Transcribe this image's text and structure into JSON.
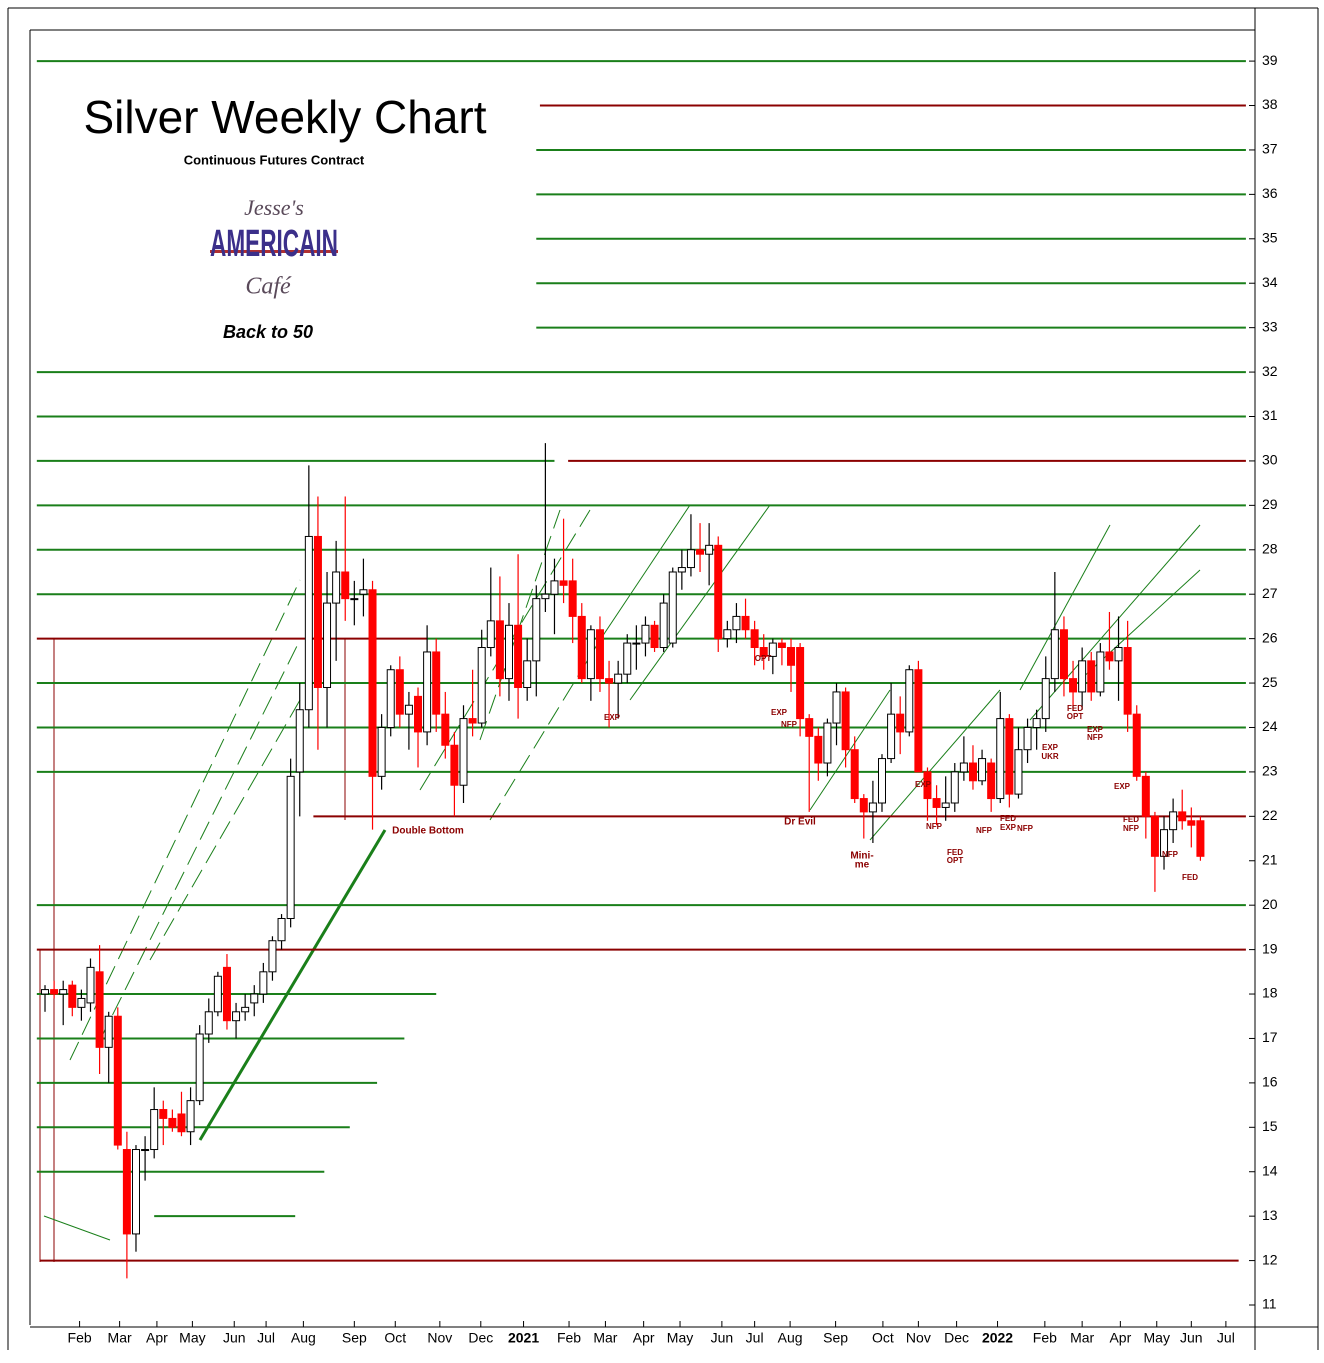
{
  "chart_data": {
    "type": "candlestick",
    "title": "Silver Weekly Chart",
    "subtitle": "Continuous Futures Contract",
    "logo": {
      "top": "Jesse's",
      "middle": "AMERICAIN",
      "bottom": "Café"
    },
    "tagline": "Back to 50",
    "up_color": "#ffffff",
    "down_color": "#ff0000",
    "ylim": [
      10.55,
      39.7
    ],
    "yticks": [
      11,
      12,
      13,
      14,
      15,
      16,
      17,
      18,
      19,
      20,
      21,
      22,
      23,
      24,
      25,
      26,
      27,
      28,
      29,
      30,
      31,
      32,
      33,
      34,
      35,
      36,
      37,
      38,
      39
    ],
    "xlim": [
      -1.65,
      133
    ],
    "xticks": [
      {
        "value": 3.8,
        "label": "Feb"
      },
      {
        "value": 8.2,
        "label": "Mar"
      },
      {
        "value": 12.3,
        "label": "Apr"
      },
      {
        "value": 16.2,
        "label": "May"
      },
      {
        "value": 20.8,
        "label": "Jun"
      },
      {
        "value": 24.3,
        "label": "Jul"
      },
      {
        "value": 28.4,
        "label": "Aug"
      },
      {
        "value": 34,
        "label": "Sep"
      },
      {
        "value": 38.5,
        "label": "Oct"
      },
      {
        "value": 43.4,
        "label": "Nov"
      },
      {
        "value": 47.9,
        "label": "Dec"
      },
      {
        "value": 52.6,
        "label": "2021"
      },
      {
        "value": 57.6,
        "label": "Feb"
      },
      {
        "value": 61.6,
        "label": "Mar"
      },
      {
        "value": 65.8,
        "label": "Apr"
      },
      {
        "value": 69.8,
        "label": "May"
      },
      {
        "value": 74.4,
        "label": "Jun"
      },
      {
        "value": 78,
        "label": "Jul"
      },
      {
        "value": 81.9,
        "label": "Aug"
      },
      {
        "value": 86.9,
        "label": "Sep"
      },
      {
        "value": 92.1,
        "label": "Oct"
      },
      {
        "value": 96,
        "label": "Nov"
      },
      {
        "value": 100.2,
        "label": "Dec"
      },
      {
        "value": 104.7,
        "label": "2022"
      },
      {
        "value": 109.9,
        "label": "Feb"
      },
      {
        "value": 114,
        "label": "Mar"
      },
      {
        "value": 118.2,
        "label": "Apr"
      },
      {
        "value": 122.2,
        "label": "May"
      },
      {
        "value": 126,
        "label": "Jun"
      },
      {
        "value": 129.8,
        "label": "Jul"
      }
    ],
    "x": [
      0,
      1,
      2,
      3,
      4,
      5,
      6,
      7,
      8,
      9,
      10,
      11,
      12,
      13,
      14,
      15,
      16,
      17,
      18,
      19,
      20,
      21,
      22,
      23,
      24,
      25,
      26,
      27,
      28,
      29,
      30,
      31,
      32,
      33,
      34,
      35,
      36,
      37,
      38,
      39,
      40,
      41,
      42,
      43,
      44,
      45,
      46,
      47,
      48,
      49,
      50,
      51,
      52,
      53,
      54,
      55,
      56,
      57,
      58,
      59,
      60,
      61,
      62,
      63,
      64,
      65,
      66,
      67,
      68,
      69,
      70,
      71,
      72,
      73,
      74,
      75,
      76,
      77,
      78,
      79,
      80,
      81,
      82,
      83,
      84,
      85,
      86,
      87,
      88,
      89,
      90,
      91,
      92,
      93,
      94,
      95,
      96,
      97,
      98,
      99,
      100,
      101,
      102,
      103,
      104,
      105,
      106,
      107,
      108,
      109,
      110,
      111,
      112,
      113,
      114,
      115,
      116,
      117,
      118,
      119,
      120,
      121,
      122,
      123,
      124,
      125,
      126,
      127
    ],
    "ohlc": [
      [
        18.0,
        18.2,
        17.6,
        18.1
      ],
      [
        18.1,
        18.3,
        17.9,
        18.0
      ],
      [
        18.0,
        18.3,
        17.3,
        18.1
      ],
      [
        18.2,
        18.3,
        17.5,
        17.7
      ],
      [
        17.7,
        18.1,
        17.4,
        17.9
      ],
      [
        17.8,
        18.8,
        17.6,
        18.6
      ],
      [
        18.5,
        19.1,
        16.2,
        16.8
      ],
      [
        16.8,
        17.6,
        16.0,
        17.5
      ],
      [
        17.5,
        17.7,
        14.5,
        14.6
      ],
      [
        14.5,
        14.9,
        11.6,
        12.6
      ],
      [
        12.6,
        14.6,
        12.2,
        14.5
      ],
      [
        14.5,
        14.8,
        13.8,
        14.5
      ],
      [
        14.5,
        15.9,
        14.3,
        15.4
      ],
      [
        15.4,
        15.6,
        14.6,
        15.2
      ],
      [
        15.2,
        15.4,
        14.9,
        15.0
      ],
      [
        15.3,
        15.8,
        14.8,
        14.9
      ],
      [
        14.9,
        15.9,
        14.6,
        15.6
      ],
      [
        15.6,
        17.3,
        15.5,
        17.1
      ],
      [
        17.1,
        17.9,
        16.9,
        17.6
      ],
      [
        17.6,
        18.5,
        17.5,
        18.4
      ],
      [
        18.6,
        18.9,
        17.2,
        17.4
      ],
      [
        17.4,
        17.8,
        17.0,
        17.6
      ],
      [
        17.6,
        18.0,
        17.4,
        17.7
      ],
      [
        17.8,
        18.2,
        17.5,
        18.0
      ],
      [
        18.0,
        18.7,
        17.8,
        18.5
      ],
      [
        18.5,
        19.3,
        18.3,
        19.2
      ],
      [
        19.2,
        19.8,
        19.0,
        19.7
      ],
      [
        19.7,
        23.3,
        19.5,
        22.9
      ],
      [
        23.0,
        25.0,
        22.0,
        24.4
      ],
      [
        24.4,
        29.9,
        24.0,
        28.3
      ],
      [
        28.3,
        29.2,
        23.5,
        24.9
      ],
      [
        24.9,
        27.5,
        24.0,
        26.8
      ],
      [
        26.8,
        28.2,
        25.5,
        27.5
      ],
      [
        27.5,
        29.2,
        26.4,
        26.9
      ],
      [
        26.9,
        27.3,
        26.3,
        26.9
      ],
      [
        27.0,
        27.8,
        26.5,
        27.1
      ],
      [
        27.1,
        27.3,
        21.7,
        22.9
      ],
      [
        22.9,
        24.3,
        22.6,
        24.0
      ],
      [
        24.0,
        25.4,
        23.8,
        25.3
      ],
      [
        25.3,
        25.6,
        24.0,
        24.3
      ],
      [
        24.3,
        24.8,
        23.5,
        24.5
      ],
      [
        24.7,
        24.9,
        23.1,
        23.9
      ],
      [
        23.9,
        26.3,
        23.6,
        25.7
      ],
      [
        25.7,
        26.0,
        23.9,
        24.3
      ],
      [
        24.3,
        24.8,
        23.3,
        23.6
      ],
      [
        23.6,
        23.9,
        22.0,
        22.7
      ],
      [
        22.7,
        24.5,
        22.3,
        24.2
      ],
      [
        24.2,
        25.3,
        23.8,
        24.1
      ],
      [
        24.1,
        26.2,
        24.0,
        25.8
      ],
      [
        25.8,
        27.6,
        25.6,
        26.4
      ],
      [
        26.4,
        27.4,
        24.7,
        25.1
      ],
      [
        25.1,
        26.8,
        24.6,
        26.3
      ],
      [
        26.3,
        27.9,
        24.2,
        24.9
      ],
      [
        24.9,
        26.0,
        24.6,
        25.5
      ],
      [
        25.5,
        27.2,
        24.7,
        26.9
      ],
      [
        26.9,
        30.4,
        26.6,
        27.0
      ],
      [
        27.0,
        27.8,
        26.1,
        27.3
      ],
      [
        27.3,
        28.7,
        26.8,
        27.2
      ],
      [
        27.3,
        27.8,
        25.9,
        26.5
      ],
      [
        26.5,
        26.8,
        25.0,
        25.1
      ],
      [
        25.1,
        26.3,
        24.6,
        26.2
      ],
      [
        26.2,
        26.5,
        24.8,
        25.1
      ],
      [
        25.1,
        25.5,
        24.0,
        25.0
      ],
      [
        25.0,
        25.5,
        24.2,
        25.2
      ],
      [
        25.2,
        26.1,
        25.0,
        25.9
      ],
      [
        25.9,
        26.3,
        25.3,
        25.9
      ],
      [
        25.9,
        26.5,
        25.6,
        26.3
      ],
      [
        26.3,
        26.4,
        25.7,
        25.8
      ],
      [
        25.8,
        27.0,
        25.7,
        26.8
      ],
      [
        25.9,
        27.6,
        25.8,
        27.5
      ],
      [
        27.5,
        28.0,
        27.1,
        27.6
      ],
      [
        27.6,
        28.8,
        27.4,
        28.0
      ],
      [
        28.0,
        28.6,
        27.5,
        27.9
      ],
      [
        27.9,
        28.6,
        27.2,
        28.1
      ],
      [
        28.1,
        28.3,
        25.7,
        26.0
      ],
      [
        26.0,
        26.4,
        25.8,
        26.2
      ],
      [
        26.2,
        26.8,
        25.9,
        26.5
      ],
      [
        26.5,
        26.9,
        26.0,
        26.2
      ],
      [
        26.2,
        26.4,
        25.4,
        25.8
      ],
      [
        25.8,
        26.1,
        25.3,
        25.6
      ],
      [
        25.6,
        26.0,
        25.2,
        25.9
      ],
      [
        25.9,
        26.0,
        25.4,
        25.8
      ],
      [
        25.8,
        26.0,
        24.8,
        25.4
      ],
      [
        25.8,
        25.9,
        23.8,
        24.2
      ],
      [
        24.2,
        24.3,
        22.1,
        23.8
      ],
      [
        23.8,
        24.0,
        22.8,
        23.2
      ],
      [
        23.2,
        24.2,
        22.9,
        24.1
      ],
      [
        24.1,
        25.0,
        23.6,
        24.8
      ],
      [
        24.8,
        24.9,
        23.1,
        23.5
      ],
      [
        23.5,
        23.8,
        22.3,
        22.4
      ],
      [
        22.4,
        22.5,
        21.5,
        22.1
      ],
      [
        22.1,
        22.8,
        21.4,
        22.3
      ],
      [
        22.3,
        23.4,
        22.1,
        23.3
      ],
      [
        23.3,
        25.0,
        23.2,
        24.3
      ],
      [
        24.3,
        24.7,
        23.4,
        23.9
      ],
      [
        23.9,
        25.4,
        23.8,
        25.3
      ],
      [
        25.3,
        25.5,
        23.0,
        23.0
      ],
      [
        23.0,
        23.1,
        21.9,
        22.4
      ],
      [
        22.4,
        22.7,
        21.8,
        22.2
      ],
      [
        22.2,
        22.9,
        21.9,
        22.3
      ],
      [
        22.3,
        23.2,
        22.1,
        23.0
      ],
      [
        23.0,
        23.8,
        22.8,
        23.2
      ],
      [
        23.2,
        23.6,
        22.6,
        22.8
      ],
      [
        22.8,
        23.5,
        22.7,
        23.3
      ],
      [
        23.2,
        23.3,
        22.1,
        22.4
      ],
      [
        22.4,
        24.8,
        22.3,
        24.2
      ],
      [
        24.2,
        24.3,
        22.2,
        22.5
      ],
      [
        22.5,
        24.0,
        22.4,
        23.5
      ],
      [
        23.5,
        24.2,
        23.2,
        24.0
      ],
      [
        24.0,
        24.4,
        23.5,
        24.2
      ],
      [
        24.2,
        25.6,
        23.9,
        25.1
      ],
      [
        25.1,
        27.5,
        24.8,
        26.2
      ],
      [
        26.2,
        26.5,
        24.7,
        25.1
      ],
      [
        25.1,
        25.5,
        24.4,
        24.8
      ],
      [
        24.8,
        25.8,
        24.4,
        25.5
      ],
      [
        25.5,
        25.7,
        24.6,
        24.8
      ],
      [
        24.8,
        25.9,
        24.7,
        25.7
      ],
      [
        25.7,
        26.6,
        25.3,
        25.5
      ],
      [
        25.5,
        26.5,
        24.6,
        25.8
      ],
      [
        25.8,
        26.4,
        23.9,
        24.3
      ],
      [
        24.3,
        24.5,
        22.8,
        22.9
      ],
      [
        22.9,
        23.0,
        21.5,
        22.0
      ],
      [
        22.0,
        22.1,
        20.3,
        21.1
      ],
      [
        21.1,
        22.0,
        20.8,
        21.7
      ],
      [
        21.7,
        22.4,
        21.4,
        22.1
      ],
      [
        22.1,
        22.6,
        21.7,
        21.9
      ],
      [
        21.9,
        22.2,
        21.3,
        21.8
      ],
      [
        21.9,
        22.0,
        21.0,
        21.1
      ]
    ],
    "levels": [
      {
        "y": 39,
        "x0": -0.9,
        "x1": 132,
        "color": "#1a7f1a"
      },
      {
        "y": 38,
        "x0": 54.4,
        "x1": 132,
        "color": "#8b0000"
      },
      {
        "y": 37,
        "x0": 54,
        "x1": 132,
        "color": "#1a7f1a"
      },
      {
        "y": 36,
        "x0": 54,
        "x1": 132,
        "color": "#1a7f1a"
      },
      {
        "y": 35,
        "x0": 54,
        "x1": 132,
        "color": "#1a7f1a"
      },
      {
        "y": 34,
        "x0": 54,
        "x1": 132,
        "color": "#1a7f1a"
      },
      {
        "y": 33,
        "x0": 54,
        "x1": 132,
        "color": "#1a7f1a"
      },
      {
        "y": 32,
        "x0": -0.9,
        "x1": 132,
        "color": "#1a7f1a"
      },
      {
        "y": 31,
        "x0": -0.9,
        "x1": 132,
        "color": "#1a7f1a"
      },
      {
        "y": 30,
        "x0": 57.5,
        "x1": 132,
        "color": "#8b0000"
      },
      {
        "y": 30,
        "x0": -0.9,
        "x1": 56,
        "color": "#1a7f1a"
      },
      {
        "y": 29,
        "x0": -0.9,
        "x1": 132,
        "color": "#1a7f1a"
      },
      {
        "y": 28,
        "x0": -0.9,
        "x1": 132,
        "color": "#1a7f1a"
      },
      {
        "y": 27,
        "x0": -0.9,
        "x1": 132,
        "color": "#1a7f1a"
      },
      {
        "y": 26,
        "x0": -0.9,
        "x1": 42,
        "color": "#8b0000"
      },
      {
        "y": 26,
        "x0": 42,
        "x1": 132,
        "color": "#1a7f1a"
      },
      {
        "y": 25,
        "x0": -0.9,
        "x1": 132,
        "color": "#1a7f1a"
      },
      {
        "y": 24,
        "x0": -0.9,
        "x1": 132,
        "color": "#1a7f1a"
      },
      {
        "y": 23,
        "x0": -0.9,
        "x1": 132,
        "color": "#1a7f1a"
      },
      {
        "y": 22,
        "x0": 29.5,
        "x1": 132,
        "color": "#8b0000"
      },
      {
        "y": 20,
        "x0": -0.9,
        "x1": 132,
        "color": "#1a7f1a"
      },
      {
        "y": 19,
        "x0": -0.9,
        "x1": 132,
        "color": "#8b0000"
      },
      {
        "y": 18,
        "x0": -0.9,
        "x1": 43,
        "color": "#1a7f1a"
      },
      {
        "y": 17,
        "x0": -0.9,
        "x1": 39.5,
        "color": "#1a7f1a"
      },
      {
        "y": 16,
        "x0": -0.9,
        "x1": 36.5,
        "color": "#1a7f1a"
      },
      {
        "y": 15,
        "x0": -0.9,
        "x1": 33.5,
        "color": "#1a7f1a"
      },
      {
        "y": 14,
        "x0": -0.9,
        "x1": 30.7,
        "color": "#1a7f1a"
      },
      {
        "y": 13,
        "x0": 12,
        "x1": 27.5,
        "color": "#1a7f1a"
      },
      {
        "y": 12,
        "x0": -0.5,
        "x1": 131.2,
        "color": "#8b0000"
      }
    ],
    "annotations": [
      "Double Bottom",
      "Dr Evil",
      "Mini-",
      "me",
      "EXP",
      "OPT",
      "EXP",
      "NFP",
      "EXP",
      "NFP",
      "FED",
      "OPT",
      "NFP",
      "FED",
      "EXP",
      "NFP",
      "EXP",
      "UKR",
      "FED",
      "OPT",
      "EXP",
      "NFP",
      "EXP",
      "FED",
      "NFP",
      "NFP",
      "FED"
    ]
  }
}
